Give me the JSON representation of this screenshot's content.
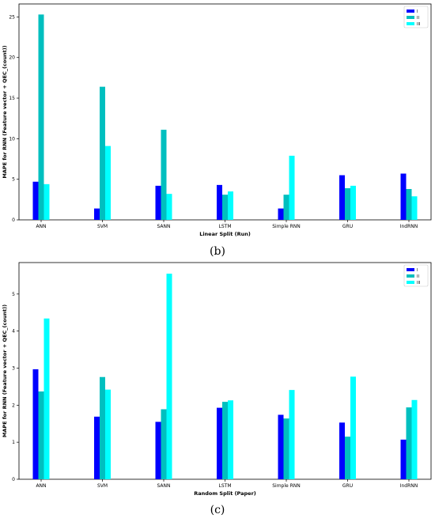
{
  "colors": {
    "I": "#0000ff",
    "II": "#00bfbf",
    "III": "#00ffff"
  },
  "chart_data": [
    {
      "type": "bar",
      "caption": "(b)",
      "categories": [
        "ANN",
        "SVM",
        "SANN",
        "LSTM",
        "Simple RNN",
        "GRU",
        "IndRNN"
      ],
      "series": [
        {
          "name": "I",
          "values": [
            4.7,
            1.4,
            4.2,
            4.3,
            1.4,
            5.5,
            5.7
          ]
        },
        {
          "name": "II",
          "values": [
            25.3,
            16.4,
            11.1,
            3.1,
            3.1,
            3.9,
            3.8
          ]
        },
        {
          "name": "III",
          "values": [
            4.4,
            9.1,
            3.2,
            3.5,
            7.9,
            4.2,
            2.9
          ]
        }
      ],
      "xlabel": "Linear Split (Run)",
      "ylabel": "MAPE for RNN (Feature vector + QEC_(count))",
      "ylim": [
        0,
        26.6
      ],
      "yticks": [
        0,
        5,
        10,
        15,
        20,
        25
      ],
      "grid": false,
      "legend": "top-right"
    },
    {
      "type": "bar",
      "caption": "(c)",
      "categories": [
        "ANN",
        "SVM",
        "SANN",
        "LSTM",
        "Simple RNN",
        "GRU",
        "IndRNN"
      ],
      "series": [
        {
          "name": "I",
          "values": [
            2.97,
            1.69,
            1.55,
            1.93,
            1.74,
            1.53,
            1.07
          ]
        },
        {
          "name": "II",
          "values": [
            2.37,
            2.76,
            1.89,
            2.09,
            1.64,
            1.15,
            1.94
          ]
        },
        {
          "name": "III",
          "values": [
            4.34,
            2.42,
            5.55,
            2.13,
            2.41,
            2.77,
            2.14
          ]
        }
      ],
      "xlabel": "Random Split (Paper)",
      "ylabel": "MAPE for RNN (Feature vector + QEC_(count))",
      "ylim": [
        0,
        5.85
      ],
      "yticks": [
        0,
        1,
        2,
        3,
        4,
        5
      ],
      "grid": false,
      "legend": "top-right"
    }
  ]
}
